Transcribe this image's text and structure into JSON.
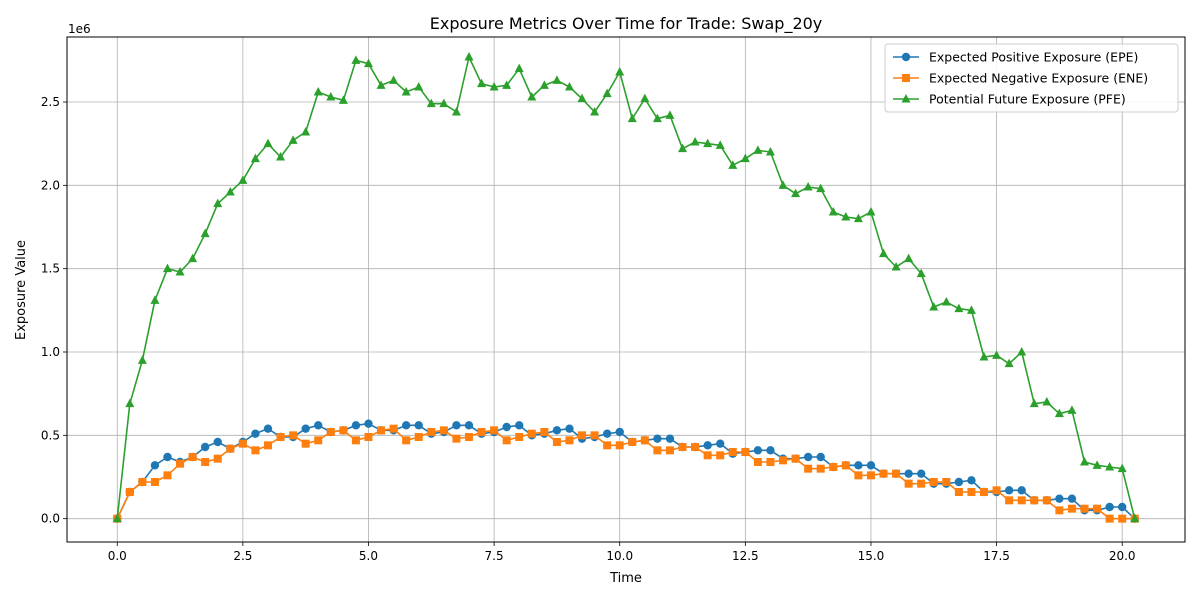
{
  "chart_data": {
    "type": "line",
    "title": "Exposure Metrics Over Time for Trade: Swap_20y",
    "xlabel": "Time",
    "ylabel": "Exposure Value",
    "y_offset_label": "1e6",
    "xlim": [
      -1.0,
      21.25
    ],
    "ylim": [
      -140000,
      2890000
    ],
    "x_ticks": [
      0,
      2.5,
      5,
      7.5,
      10,
      12.5,
      15,
      17.5,
      20
    ],
    "x_tick_labels": [
      "0.0",
      "2.5",
      "5.0",
      "7.5",
      "10.0",
      "12.5",
      "15.0",
      "17.5",
      "20.0"
    ],
    "y_ticks": [
      0,
      500000,
      1000000,
      1500000,
      2000000,
      2500000
    ],
    "y_tick_labels": [
      "0.0",
      "0.5",
      "1.0",
      "1.5",
      "2.0",
      "2.5"
    ],
    "grid": true,
    "legend_position": "top-right",
    "x": [
      0,
      0.25,
      0.5,
      0.75,
      1,
      1.25,
      1.5,
      1.75,
      2,
      2.25,
      2.5,
      2.75,
      3,
      3.25,
      3.5,
      3.75,
      4,
      4.25,
      4.5,
      4.75,
      5,
      5.25,
      5.5,
      5.75,
      6,
      6.25,
      6.5,
      6.75,
      7,
      7.25,
      7.5,
      7.75,
      8,
      8.25,
      8.5,
      8.75,
      9,
      9.25,
      9.5,
      9.75,
      10,
      10.25,
      10.5,
      10.75,
      11,
      11.25,
      11.5,
      11.75,
      12,
      12.25,
      12.5,
      12.75,
      13,
      13.25,
      13.5,
      13.75,
      14,
      14.25,
      14.5,
      14.75,
      15,
      15.25,
      15.5,
      15.75,
      16,
      16.25,
      16.5,
      16.75,
      17,
      17.25,
      17.5,
      17.75,
      18,
      18.25,
      18.5,
      18.75,
      19,
      19.25,
      19.5,
      19.75,
      20,
      20.25
    ],
    "series": [
      {
        "name": "Expected Positive Exposure (EPE)",
        "color": "#1f77b4",
        "marker": "circle",
        "values": [
          0,
          160000,
          220000,
          320000,
          370000,
          340000,
          370000,
          430000,
          460000,
          420000,
          460000,
          510000,
          540000,
          490000,
          490000,
          540000,
          560000,
          520000,
          530000,
          560000,
          570000,
          530000,
          530000,
          560000,
          560000,
          510000,
          520000,
          560000,
          560000,
          510000,
          520000,
          550000,
          560000,
          500000,
          510000,
          530000,
          540000,
          480000,
          490000,
          510000,
          520000,
          460000,
          470000,
          480000,
          480000,
          430000,
          430000,
          440000,
          450000,
          390000,
          400000,
          410000,
          410000,
          360000,
          360000,
          370000,
          370000,
          310000,
          320000,
          320000,
          320000,
          270000,
          270000,
          270000,
          270000,
          210000,
          210000,
          220000,
          230000,
          160000,
          160000,
          170000,
          170000,
          110000,
          110000,
          120000,
          120000,
          50000,
          50000,
          70000,
          70000,
          0
        ]
      },
      {
        "name": "Expected Negative Exposure (ENE)",
        "color": "#ff7f0e",
        "marker": "square",
        "values": [
          0,
          160000,
          220000,
          220000,
          260000,
          330000,
          370000,
          340000,
          360000,
          420000,
          450000,
          410000,
          440000,
          490000,
          500000,
          450000,
          470000,
          520000,
          530000,
          470000,
          490000,
          530000,
          540000,
          470000,
          490000,
          520000,
          530000,
          480000,
          490000,
          520000,
          530000,
          470000,
          490000,
          510000,
          520000,
          460000,
          470000,
          500000,
          500000,
          440000,
          440000,
          460000,
          470000,
          410000,
          410000,
          430000,
          430000,
          380000,
          380000,
          400000,
          400000,
          340000,
          340000,
          350000,
          360000,
          300000,
          300000,
          310000,
          320000,
          260000,
          260000,
          270000,
          270000,
          210000,
          210000,
          220000,
          220000,
          160000,
          160000,
          160000,
          170000,
          110000,
          110000,
          110000,
          110000,
          50000,
          60000,
          60000,
          60000,
          0,
          0,
          0
        ]
      },
      {
        "name": "Potential Future Exposure (PFE)",
        "color": "#2ca02c",
        "marker": "triangle",
        "values": [
          0,
          690000,
          950000,
          1310000,
          1500000,
          1480000,
          1560000,
          1710000,
          1890000,
          1960000,
          2030000,
          2160000,
          2250000,
          2170000,
          2270000,
          2320000,
          2560000,
          2530000,
          2510000,
          2750000,
          2730000,
          2600000,
          2630000,
          2560000,
          2590000,
          2490000,
          2490000,
          2440000,
          2770000,
          2610000,
          2590000,
          2600000,
          2700000,
          2530000,
          2600000,
          2630000,
          2590000,
          2520000,
          2440000,
          2550000,
          2680000,
          2400000,
          2520000,
          2400000,
          2420000,
          2220000,
          2260000,
          2250000,
          2240000,
          2120000,
          2160000,
          2210000,
          2200000,
          2000000,
          1950000,
          1990000,
          1980000,
          1840000,
          1810000,
          1800000,
          1840000,
          1590000,
          1510000,
          1560000,
          1470000,
          1270000,
          1300000,
          1260000,
          1250000,
          970000,
          980000,
          930000,
          1000000,
          690000,
          700000,
          630000,
          650000,
          340000,
          320000,
          310000,
          300000,
          0
        ]
      }
    ]
  }
}
